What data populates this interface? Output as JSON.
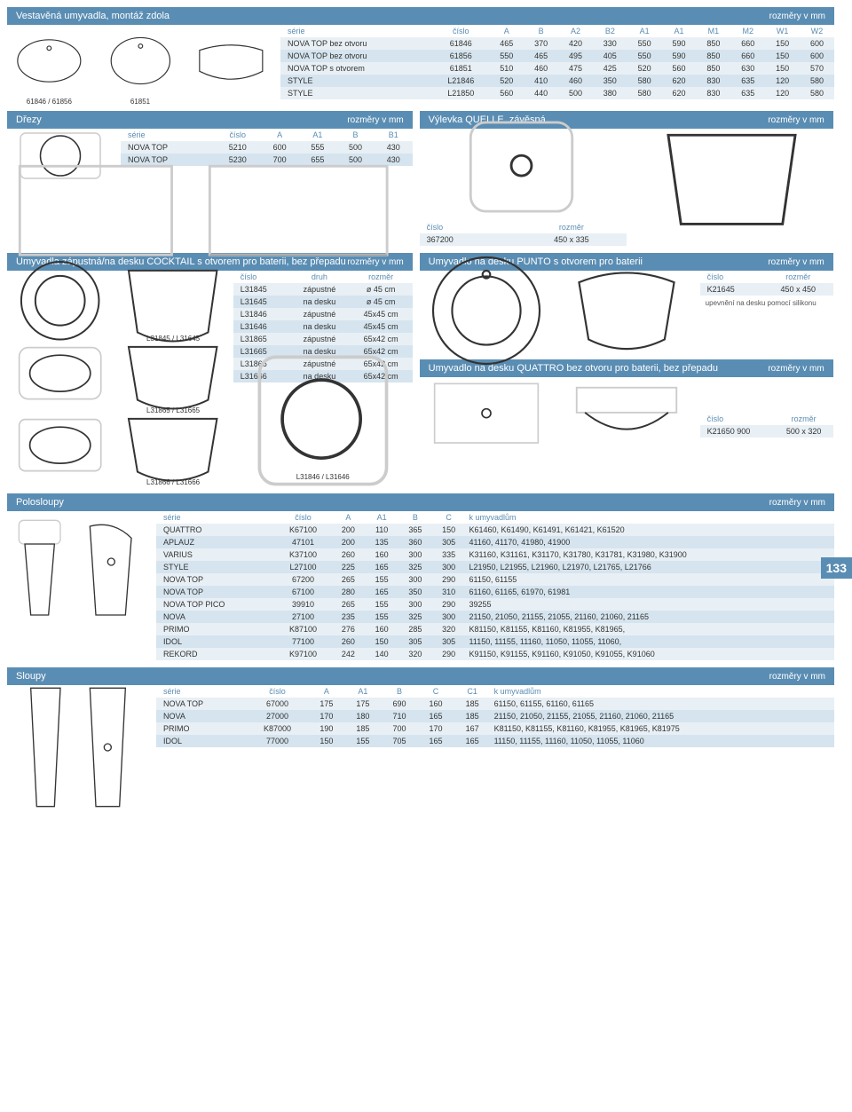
{
  "page_number": "133",
  "colors": {
    "header_bg": "#5a8db3",
    "row_even": "#e8f0f5",
    "row_odd": "#d5e4ee",
    "header_text": "#5a8db3"
  },
  "vestavena": {
    "title": "Vestavěná umyvadla, montáž zdola",
    "units": "rozměry v mm",
    "dia_labels": [
      "61846 / 61856",
      "61851"
    ],
    "columns": [
      "série",
      "číslo",
      "A",
      "B",
      "A2",
      "B2",
      "A1",
      "A1",
      "M1",
      "M2",
      "W1",
      "W2"
    ],
    "rows": [
      [
        "NOVA TOP bez otvoru",
        "61846",
        "465",
        "370",
        "420",
        "330",
        "550",
        "590",
        "850",
        "660",
        "150",
        "600"
      ],
      [
        "NOVA TOP bez otvoru",
        "61856",
        "550",
        "465",
        "495",
        "405",
        "550",
        "590",
        "850",
        "660",
        "150",
        "600"
      ],
      [
        "NOVA TOP s otvorem",
        "61851",
        "510",
        "460",
        "475",
        "425",
        "520",
        "560",
        "850",
        "630",
        "150",
        "570"
      ],
      [
        "STYLE",
        "L21846",
        "520",
        "410",
        "460",
        "350",
        "580",
        "620",
        "830",
        "635",
        "120",
        "580"
      ],
      [
        "STYLE",
        "L21850",
        "560",
        "440",
        "500",
        "380",
        "580",
        "620",
        "830",
        "635",
        "120",
        "580"
      ]
    ]
  },
  "drezy": {
    "title": "Dřezy",
    "units": "rozměry v mm",
    "columns": [
      "série",
      "číslo",
      "A",
      "A1",
      "B",
      "B1"
    ],
    "rows": [
      [
        "NOVA TOP",
        "5210",
        "600",
        "555",
        "500",
        "430"
      ],
      [
        "NOVA TOP",
        "5230",
        "700",
        "655",
        "500",
        "430"
      ]
    ]
  },
  "vylevka": {
    "title": "Výlevka QUELLE, závěsná",
    "units": "rozměry v mm",
    "columns": [
      "číslo",
      "rozměr"
    ],
    "rows": [
      [
        "367200",
        "450 x 335"
      ]
    ]
  },
  "cocktail": {
    "title": "Umyvadla zápustná/na desku COCKTAIL s otvorem pro baterii, bez přepadu",
    "units": "rozměry v mm",
    "columns": [
      "číslo",
      "druh",
      "rozměr"
    ],
    "rows": [
      [
        "L31845",
        "zápustné",
        "ø 45 cm"
      ],
      [
        "L31645",
        "na desku",
        "ø 45 cm"
      ],
      [
        "L31846",
        "zápustné",
        "45x45 cm"
      ],
      [
        "L31646",
        "na desku",
        "45x45 cm"
      ],
      [
        "L31865",
        "zápustné",
        "65x42 cm"
      ],
      [
        "L31665",
        "na desku",
        "65x42 cm"
      ],
      [
        "L31866",
        "zápustné",
        "65x42 cm"
      ],
      [
        "L31666",
        "na desku",
        "65x42 cm"
      ]
    ],
    "dia_labels": [
      "L31845 / L31645",
      "L31865 / L31665",
      "L31866 / L31666",
      "L31846 / L31646"
    ]
  },
  "punto": {
    "title": "Umyvadlo na desku PUNTO s otvorem pro baterii",
    "units": "rozměry v mm",
    "columns": [
      "číslo",
      "rozměr"
    ],
    "rows": [
      [
        "K21645",
        "450 x 450"
      ]
    ],
    "note": "upevnění na desku pomocí silikonu"
  },
  "quattro_sink": {
    "title": "Umyvadlo na desku QUATTRO bez otvoru pro baterii, bez přepadu",
    "units": "rozměry v mm",
    "columns": [
      "číslo",
      "rozměr"
    ],
    "rows": [
      [
        "K21650 900",
        "500 x 320"
      ]
    ]
  },
  "polosloupy": {
    "title": "Polosloupy",
    "units": "rozměry v mm",
    "columns": [
      "série",
      "číslo",
      "A",
      "A1",
      "B",
      "C",
      "k umyvadlům"
    ],
    "rows": [
      [
        "QUATTRO",
        "K67100",
        "200",
        "110",
        "365",
        "150",
        "K61460, K61490, K61491, K61421, K61520"
      ],
      [
        "APLAUZ",
        "47101",
        "200",
        "135",
        "360",
        "305",
        "41160, 41170, 41980, 41900"
      ],
      [
        "VARIUS",
        "K37100",
        "260",
        "160",
        "300",
        "335",
        "K31160, K31161, K31170, K31780, K31781, K31980, K31900"
      ],
      [
        "STYLE",
        "L27100",
        "225",
        "165",
        "325",
        "300",
        "L21950, L21955, L21960, L21970, L21765, L21766"
      ],
      [
        "NOVA TOP",
        "67200",
        "265",
        "155",
        "300",
        "290",
        "61150, 61155"
      ],
      [
        "NOVA TOP",
        "67100",
        "280",
        "165",
        "350",
        "310",
        "61160, 61165, 61970, 61981"
      ],
      [
        "NOVA TOP PICO",
        "39910",
        "265",
        "155",
        "300",
        "290",
        "39255"
      ],
      [
        "NOVA",
        "27100",
        "235",
        "155",
        "325",
        "300",
        "21150, 21050, 21155, 21055, 21160, 21060, 21165"
      ],
      [
        "PRIMO",
        "K87100",
        "276",
        "160",
        "285",
        "320",
        "K81150, K81155, K81160, K81955, K81965,"
      ],
      [
        "IDOL",
        "77100",
        "260",
        "150",
        "305",
        "305",
        "11150, 11155, 11160, 11050, 11055, 11060,"
      ],
      [
        "REKORD",
        "K97100",
        "242",
        "140",
        "320",
        "290",
        "K91150, K91155, K91160, K91050, K91055, K91060"
      ]
    ]
  },
  "sloupy": {
    "title": "Sloupy",
    "units": "rozměry v mm",
    "columns": [
      "série",
      "číslo",
      "A",
      "A1",
      "B",
      "C",
      "C1",
      "k umyvadlům"
    ],
    "rows": [
      [
        "NOVA TOP",
        "67000",
        "175",
        "175",
        "690",
        "160",
        "185",
        "61150, 61155, 61160, 61165"
      ],
      [
        "NOVA",
        "27000",
        "170",
        "180",
        "710",
        "165",
        "185",
        "21150, 21050, 21155, 21055, 21160, 21060, 21165"
      ],
      [
        "PRIMO",
        "K87000",
        "190",
        "185",
        "700",
        "170",
        "167",
        "K81150, K81155, K81160, K81955, K81965, K81975"
      ],
      [
        "IDOL",
        "77000",
        "150",
        "155",
        "705",
        "165",
        "165",
        "11150, 11155, 11160, 11050, 11055, 11060"
      ]
    ]
  }
}
